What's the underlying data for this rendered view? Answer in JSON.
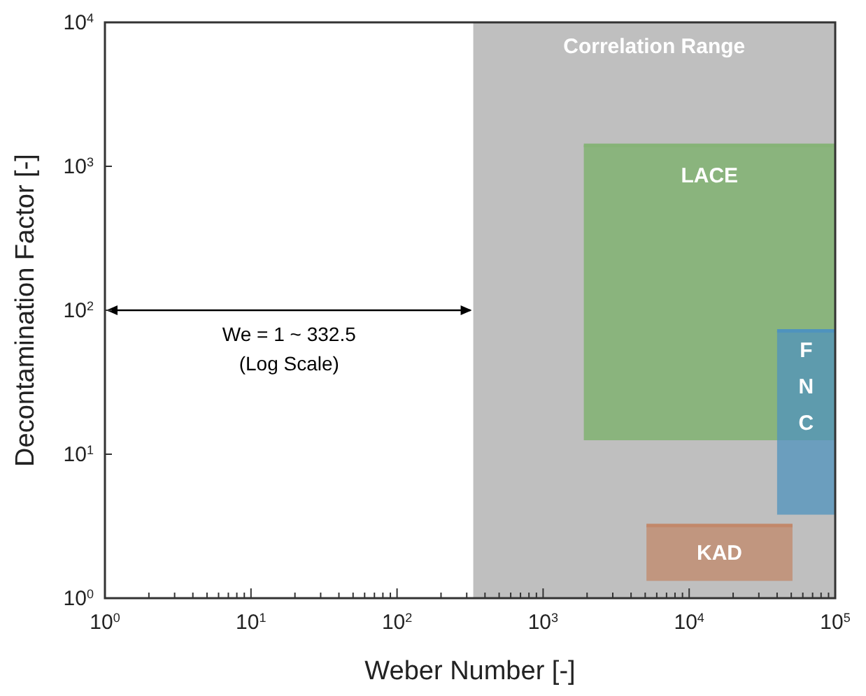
{
  "chart_data": {
    "type": "line",
    "xlabel": "Weber Number [-]",
    "ylabel": "Decontamination Factor [-]",
    "log": "xy",
    "xlim": [
      1,
      100000
    ],
    "ylim": [
      1,
      10000
    ],
    "xticks": [
      {
        "value": 1,
        "label": "10$^{0}$"
      },
      {
        "value": 10,
        "label": "10$^{1}$"
      },
      {
        "value": 100,
        "label": "10$^{2}$"
      },
      {
        "value": 1000,
        "label": "10$^{3}$"
      },
      {
        "value": 10000,
        "label": "10$^{4}$"
      },
      {
        "value": 100000,
        "label": "10$^{5}$"
      }
    ],
    "yticks": [
      {
        "value": 1,
        "label": "10$^{0}$"
      },
      {
        "value": 10,
        "label": "10$^{1}$"
      },
      {
        "value": 100,
        "label": "10$^{2}$"
      },
      {
        "value": 1000,
        "label": "10$^{3}$"
      },
      {
        "value": 10000,
        "label": "10$^{4}$"
      }
    ],
    "bands": [
      {
        "axis": "x",
        "from": 332.5,
        "to": 100000,
        "label": "Correlation Range",
        "color": "#bfbfbf"
      }
    ],
    "series": [
      {
        "name": "LACE",
        "color": "#86b377",
        "x": [
          1900,
          100000
        ],
        "lower": [
          12.5,
          12.5
        ],
        "upper": [
          1400,
          1400
        ],
        "values": [
          1400,
          1400
        ]
      },
      {
        "name": "FNC",
        "color": "#4f93bd",
        "x": [
          40000,
          100000
        ],
        "lower": [
          3.8,
          3.8
        ],
        "upper": [
          72,
          72
        ],
        "values": [
          72,
          72
        ]
      },
      {
        "name": "KAD",
        "color": "#c2886a",
        "x": [
          5100,
          51000
        ],
        "lower": [
          1.32,
          1.32
        ],
        "upper": [
          3.2,
          3.2
        ],
        "values": [
          3.2,
          3.2
        ]
      }
    ],
    "annotations": [
      "We = 1 ~ 332.5",
      "(Log Scale)"
    ]
  }
}
